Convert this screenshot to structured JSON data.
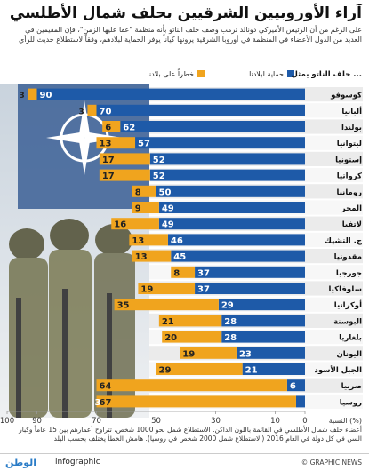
{
  "header": {
    "title": "آراء الأوروبيين الشرقيين بحلف شمال الأطلسي",
    "intro": "على الرغم من أن الرئيس الأميركي دونالد ترمب وصف حلف الناتو بأنه منظمة \"عفا عليها الزمن\"، فإن المقيمين في العديد من الدول الأعضاء في المنظمة في أوروبا الشرقية يرونها كياناً يوفر الحماية لبلادهم، وفقاً لاستطلاع حديث للرأي"
  },
  "chart_data": {
    "type": "bar",
    "orientation": "horizontal",
    "row_header": "حلف الناتو يمثل ...",
    "axis_title": "النسبة (%)",
    "xlim": [
      0,
      100
    ],
    "x_ticks": [
      "0",
      "10",
      "30",
      "50",
      "70",
      "90",
      "100"
    ],
    "legend_position": "top",
    "categories": [
      "كوسوفو",
      "ألبانيا",
      "بولندا",
      "ليتوانيا",
      "إستونيا",
      "كرواتيا",
      "رومانيا",
      "المجر",
      "لاتفيا",
      "ج. التشيك",
      "مقدونيا",
      "جورجيا",
      "سلوفاكيا",
      "أوكرانيا",
      "البوسنة",
      "بلغاريا",
      "اليونان",
      "الجبل الأسود",
      "صربيا",
      "روسيا"
    ],
    "series": [
      {
        "name": "حماية لبلادنا",
        "color": "#1e5aa8",
        "values": [
          90,
          70,
          62,
          57,
          52,
          52,
          50,
          49,
          49,
          46,
          45,
          37,
          37,
          29,
          28,
          28,
          23,
          21,
          6,
          3
        ]
      },
      {
        "name": "خطراً على بلادنا",
        "color": "#f0a41e",
        "values": [
          3,
          3,
          6,
          13,
          17,
          17,
          8,
          9,
          16,
          13,
          13,
          8,
          19,
          35,
          21,
          20,
          19,
          29,
          64,
          67
        ]
      }
    ],
    "colors": {
      "blue_bar": "#1e5aa8",
      "orange_bar": "#f0a41e",
      "row_band": "#e9e9e9"
    }
  },
  "footnote": "أعضاء حلف شمال الأطلسي في القائمة باللون الداكن. الاستطلاع شمل نحو 1000 شخص، تتراوح أعمارهم بين 15 عاماً وكبار السن في كل دولة في العام 2016 (الاستطلاع شمل 2000 شخص في روسيا). هامش الخطأ يختلف بحسب البلد",
  "footer": {
    "brand": "الوطن",
    "section": "infographic",
    "credit": "© GRAPHIC NEWS"
  }
}
